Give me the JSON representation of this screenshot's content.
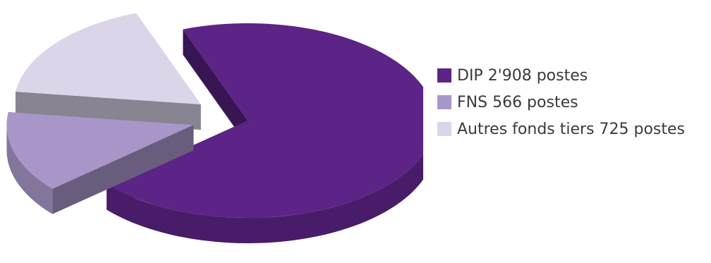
{
  "chart_data": {
    "type": "pie",
    "style": "3d-exploded",
    "legend_position": "right",
    "series": [
      {
        "label": "DIP 2'908 postes",
        "value": 2908,
        "color": "#5c2486"
      },
      {
        "label": "FNS 566 postes",
        "value": 566,
        "color": "#a996c9"
      },
      {
        "label": "Autres fonds tiers 725 postes",
        "value": 725,
        "color": "#dcd5ea"
      }
    ]
  }
}
